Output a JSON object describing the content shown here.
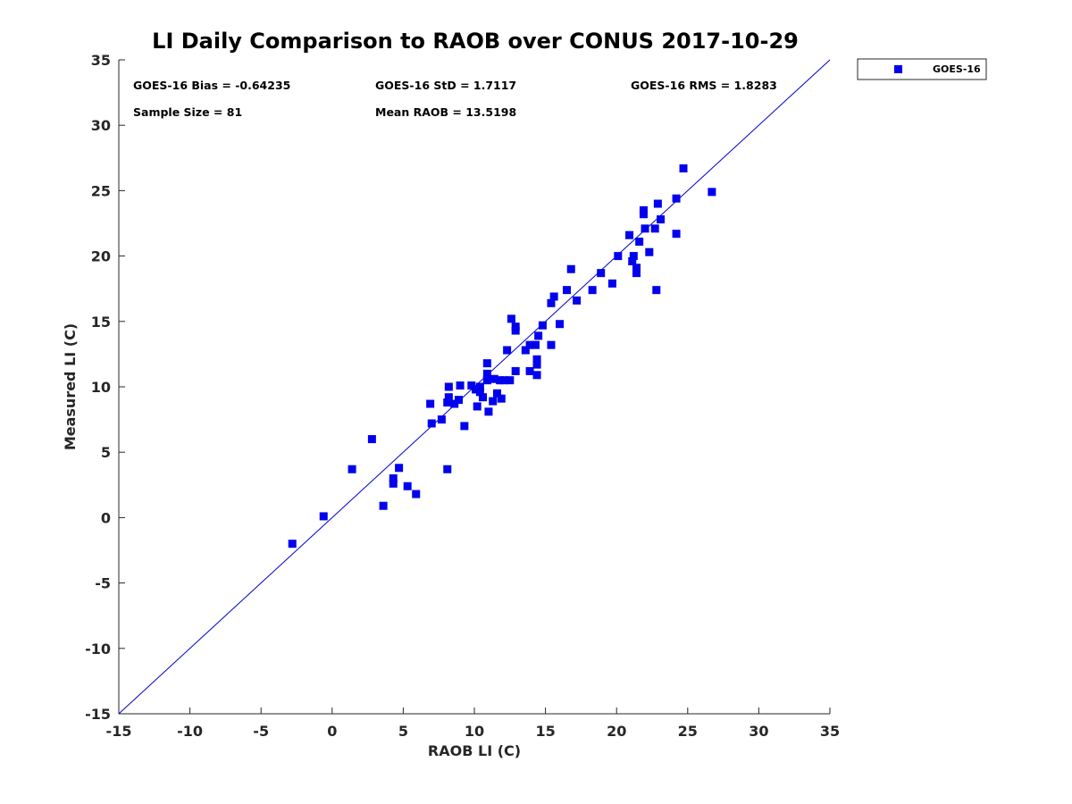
{
  "chart_data": {
    "type": "scatter",
    "title": "LI Daily Comparison to RAOB over CONUS 2017-10-29",
    "xlabel": "RAOB LI (C)",
    "ylabel": "Measured LI (C)",
    "xlim": [
      -15,
      35
    ],
    "ylim": [
      -15,
      35
    ],
    "xticks": [
      "-15",
      "-10",
      "-5",
      "0",
      "5",
      "10",
      "15",
      "20",
      "25",
      "30",
      "35"
    ],
    "yticks": [
      "-15",
      "-10",
      "-5",
      "0",
      "5",
      "10",
      "15",
      "20",
      "25",
      "30",
      "35"
    ],
    "grid": false,
    "legend_position": "outside-top-right",
    "reference_line": {
      "label": "1:1 line",
      "from": [
        -15,
        -15
      ],
      "to": [
        35,
        35
      ],
      "color": "#0000cc"
    },
    "stats": {
      "bias": "GOES-16 Bias = -0.64235",
      "std": "GOES-16 StD = 1.7117",
      "rms": "GOES-16 RMS = 1.8283",
      "sample_size": "Sample Size = 81",
      "mean_raob": "Mean RAOB = 13.5198"
    },
    "series": [
      {
        "name": "GOES-16",
        "color": "#0000ee",
        "marker": "square",
        "points": [
          [
            -2.8,
            -2.0
          ],
          [
            -0.6,
            0.1
          ],
          [
            1.4,
            3.7
          ],
          [
            2.8,
            6.0
          ],
          [
            3.6,
            0.9
          ],
          [
            4.3,
            2.6
          ],
          [
            4.3,
            3.0
          ],
          [
            4.7,
            3.8
          ],
          [
            5.3,
            2.4
          ],
          [
            5.9,
            1.8
          ],
          [
            6.9,
            8.7
          ],
          [
            7.0,
            7.2
          ],
          [
            7.7,
            7.5
          ],
          [
            8.1,
            8.8
          ],
          [
            8.2,
            9.2
          ],
          [
            8.2,
            10.0
          ],
          [
            8.1,
            3.7
          ],
          [
            8.6,
            8.7
          ],
          [
            8.9,
            9.0
          ],
          [
            9.0,
            10.1
          ],
          [
            9.3,
            7.0
          ],
          [
            9.8,
            10.1
          ],
          [
            10.1,
            9.8
          ],
          [
            10.2,
            8.5
          ],
          [
            10.4,
            9.6
          ],
          [
            10.4,
            10.0
          ],
          [
            10.6,
            9.2
          ],
          [
            10.9,
            10.5
          ],
          [
            10.9,
            11.0
          ],
          [
            10.9,
            11.8
          ],
          [
            11.0,
            8.1
          ],
          [
            11.3,
            8.9
          ],
          [
            11.4,
            10.6
          ],
          [
            11.6,
            9.5
          ],
          [
            11.8,
            10.5
          ],
          [
            11.9,
            9.1
          ],
          [
            12.1,
            10.5
          ],
          [
            12.3,
            12.8
          ],
          [
            12.6,
            15.2
          ],
          [
            12.5,
            10.5
          ],
          [
            12.9,
            11.2
          ],
          [
            12.9,
            14.6
          ],
          [
            12.9,
            14.3
          ],
          [
            13.6,
            12.8
          ],
          [
            13.9,
            13.2
          ],
          [
            13.9,
            11.2
          ],
          [
            14.3,
            13.2
          ],
          [
            14.4,
            11.7
          ],
          [
            14.4,
            12.1
          ],
          [
            14.4,
            10.9
          ],
          [
            14.5,
            13.9
          ],
          [
            14.8,
            14.7
          ],
          [
            15.4,
            13.2
          ],
          [
            15.4,
            16.4
          ],
          [
            15.6,
            16.9
          ],
          [
            16.0,
            14.8
          ],
          [
            16.5,
            17.4
          ],
          [
            16.8,
            19.0
          ],
          [
            17.2,
            16.6
          ],
          [
            18.3,
            17.4
          ],
          [
            18.9,
            18.7
          ],
          [
            19.7,
            17.9
          ],
          [
            20.1,
            20.0
          ],
          [
            20.9,
            21.6
          ],
          [
            21.1,
            19.6
          ],
          [
            21.2,
            20.0
          ],
          [
            21.4,
            18.7
          ],
          [
            21.4,
            19.1
          ],
          [
            21.6,
            21.1
          ],
          [
            21.9,
            23.2
          ],
          [
            21.9,
            23.5
          ],
          [
            22.0,
            22.1
          ],
          [
            22.3,
            20.3
          ],
          [
            22.7,
            22.1
          ],
          [
            22.8,
            17.4
          ],
          [
            22.9,
            24.0
          ],
          [
            23.1,
            22.8
          ],
          [
            24.2,
            24.4
          ],
          [
            24.2,
            21.7
          ],
          [
            24.7,
            26.7
          ],
          [
            26.7,
            24.9
          ]
        ]
      }
    ]
  }
}
